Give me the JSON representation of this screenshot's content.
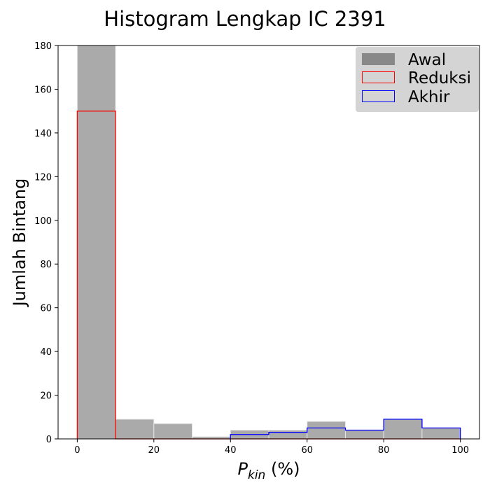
{
  "chart_data": {
    "type": "bar",
    "title": "Histogram Lengkap IC 2391",
    "xlabel_main": "P",
    "xlabel_sub": "kin",
    "xlabel_tail": " (%)",
    "ylabel": "Jumlah Bintang",
    "xlim": [
      -5,
      105
    ],
    "ylim": [
      0,
      180
    ],
    "xticks": [
      0,
      20,
      40,
      60,
      80,
      100
    ],
    "yticks": [
      0,
      20,
      40,
      60,
      80,
      100,
      120,
      140,
      160,
      180
    ],
    "bin_edges": [
      0,
      10,
      20,
      30,
      40,
      50,
      60,
      70,
      80,
      90,
      100
    ],
    "legend_position": "top-right",
    "series": [
      {
        "name": "Awal",
        "style": "filled",
        "fill": "#aaaaaa",
        "edge": "#e6e6e6",
        "values": [
          180,
          9,
          7,
          1,
          4,
          4,
          8,
          4,
          9,
          5
        ]
      },
      {
        "name": "Reduksi",
        "style": "step",
        "edge": "#ff0000",
        "values": [
          150,
          0,
          0,
          0,
          0,
          0,
          0,
          0,
          0,
          0
        ]
      },
      {
        "name": "Akhir",
        "style": "step",
        "edge": "#0000ff",
        "values": [
          0,
          0,
          0,
          0,
          2,
          3,
          5,
          4,
          9,
          5
        ]
      }
    ],
    "legend_colors": {
      "awal": "#888888",
      "frame": "#cccccc"
    }
  }
}
